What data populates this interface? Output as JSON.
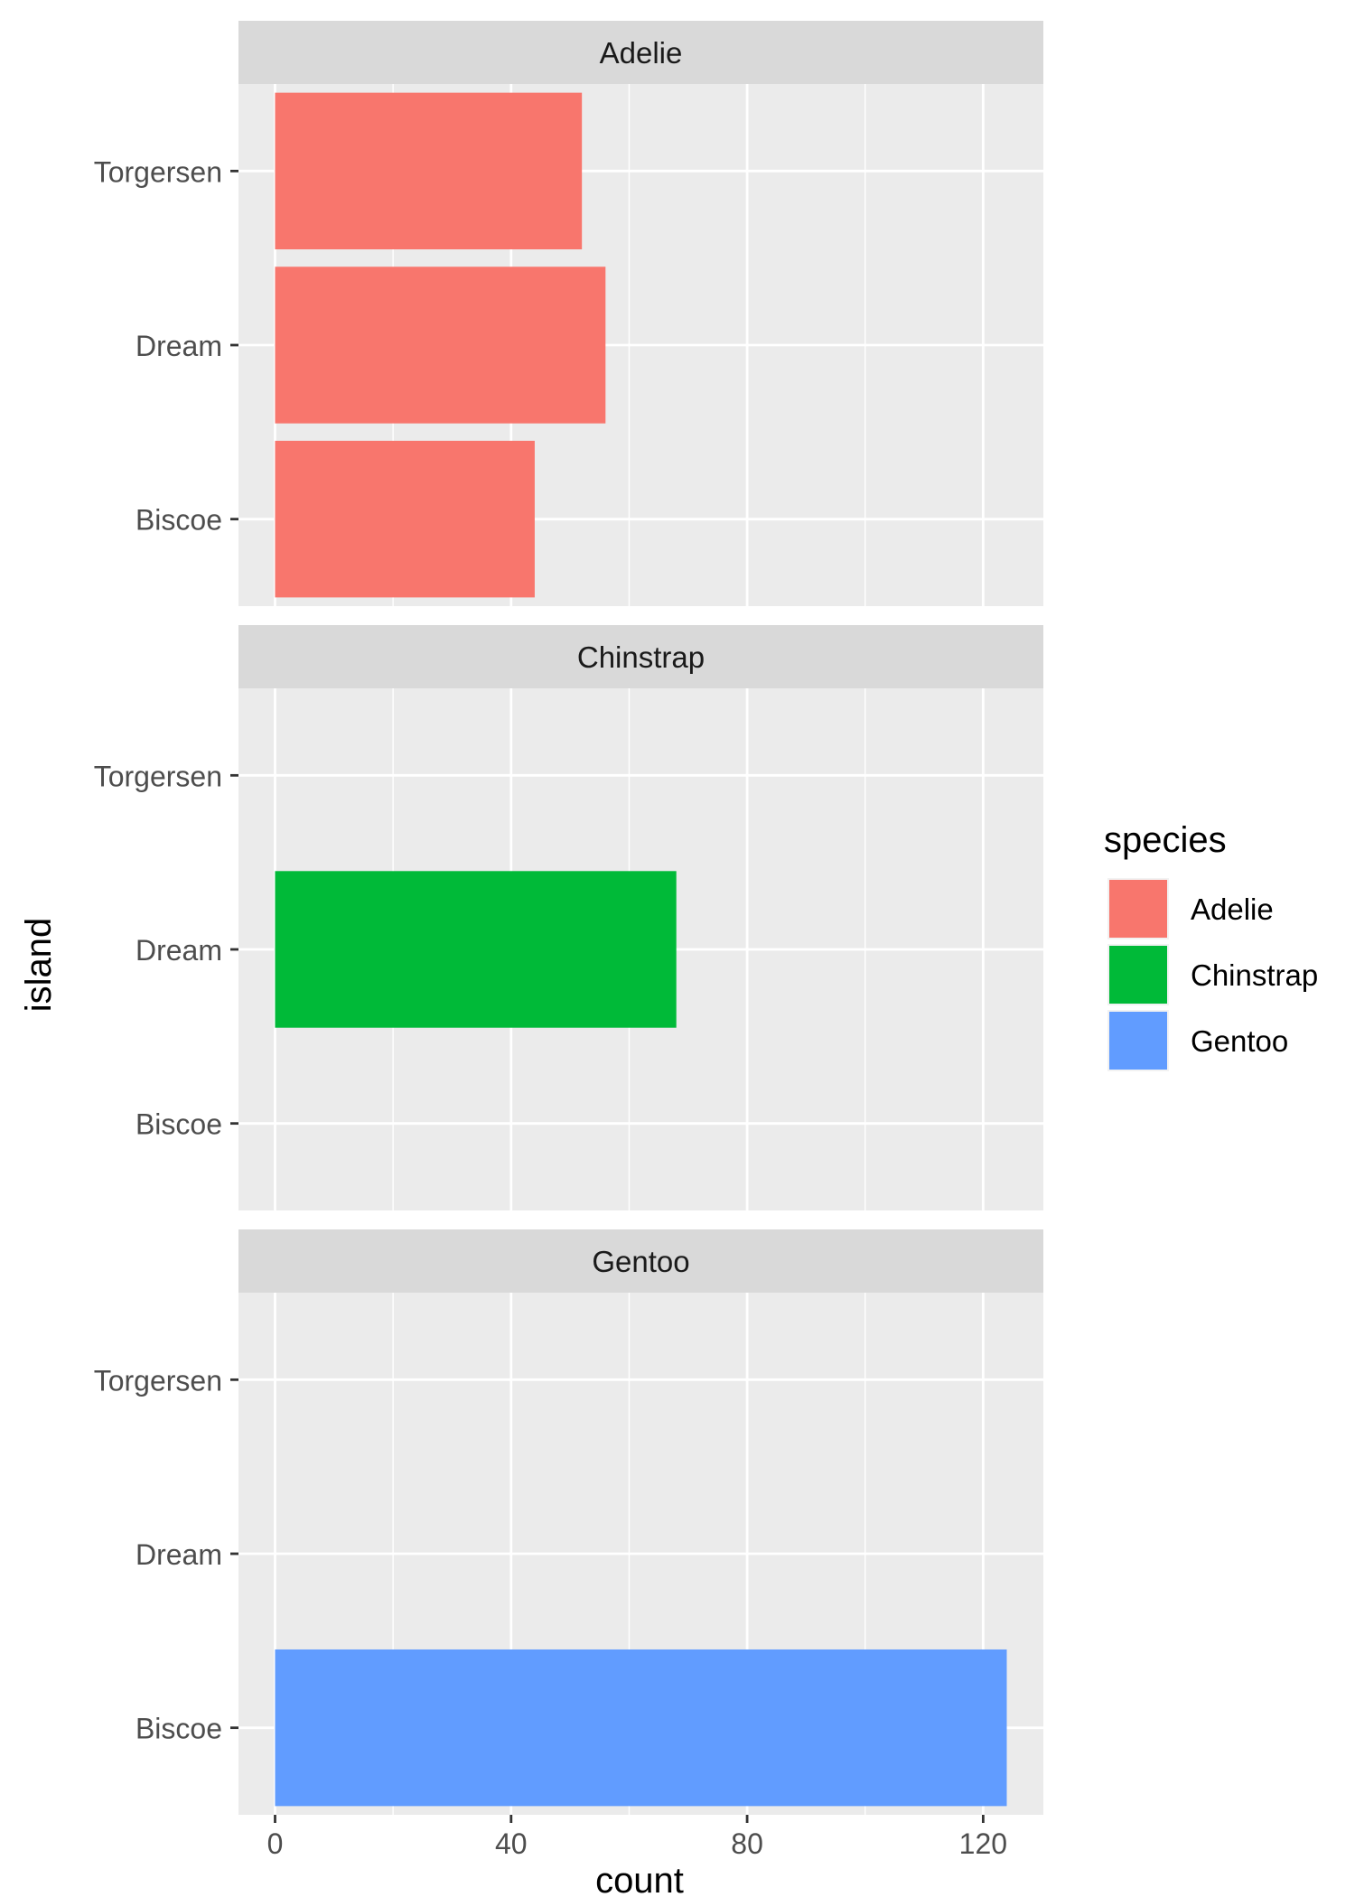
{
  "chart_data": {
    "type": "bar",
    "orientation": "horizontal",
    "facet_by": "species",
    "facets": [
      "Adelie",
      "Chinstrap",
      "Gentoo"
    ],
    "categories": [
      "Torgersen",
      "Dream",
      "Biscoe"
    ],
    "series": [
      {
        "name": "Adelie",
        "color": "#F8766D",
        "values": [
          52,
          56,
          44
        ]
      },
      {
        "name": "Chinstrap",
        "color": "#00BA38",
        "values": [
          0,
          68,
          0
        ]
      },
      {
        "name": "Gentoo",
        "color": "#619CFF",
        "values": [
          0,
          0,
          124
        ]
      }
    ],
    "xlabel": "count",
    "ylabel": "island",
    "xlim": [
      -6.2,
      130.2
    ],
    "xticks": [
      0,
      40,
      80,
      120
    ],
    "xtick_labels": [
      "0",
      "40",
      "80",
      "120"
    ],
    "grid": true,
    "legend": {
      "title": "species",
      "position": "right",
      "entries": [
        "Adelie",
        "Chinstrap",
        "Gentoo"
      ]
    }
  }
}
